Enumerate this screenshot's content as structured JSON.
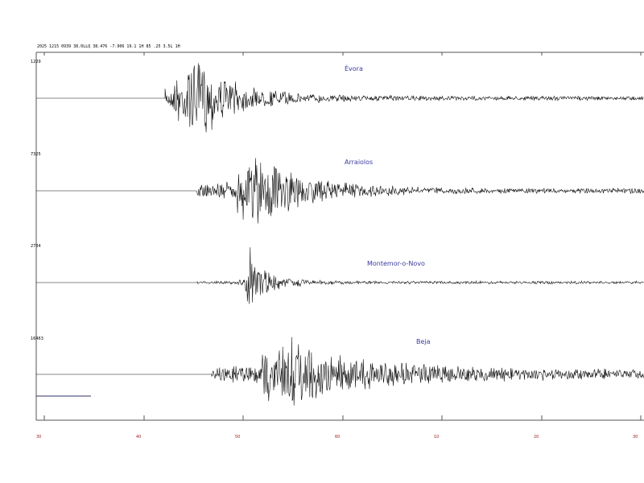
{
  "header": "2025 1215 0939 38.0LLQ 38.476  -7.906 19.1   1H 85 .25 3.5L 1H",
  "traces": [
    {
      "station": "Évora",
      "amplitude": "1229"
    },
    {
      "station": "Arraiolos",
      "amplitude": "7325"
    },
    {
      "station": "Montemor-o-Novo",
      "amplitude": "2734"
    },
    {
      "station": "Beja",
      "amplitude": "16463"
    }
  ],
  "time_labels": [
    "30",
    "40",
    "50",
    "60",
    "10",
    "20",
    "30"
  ]
}
